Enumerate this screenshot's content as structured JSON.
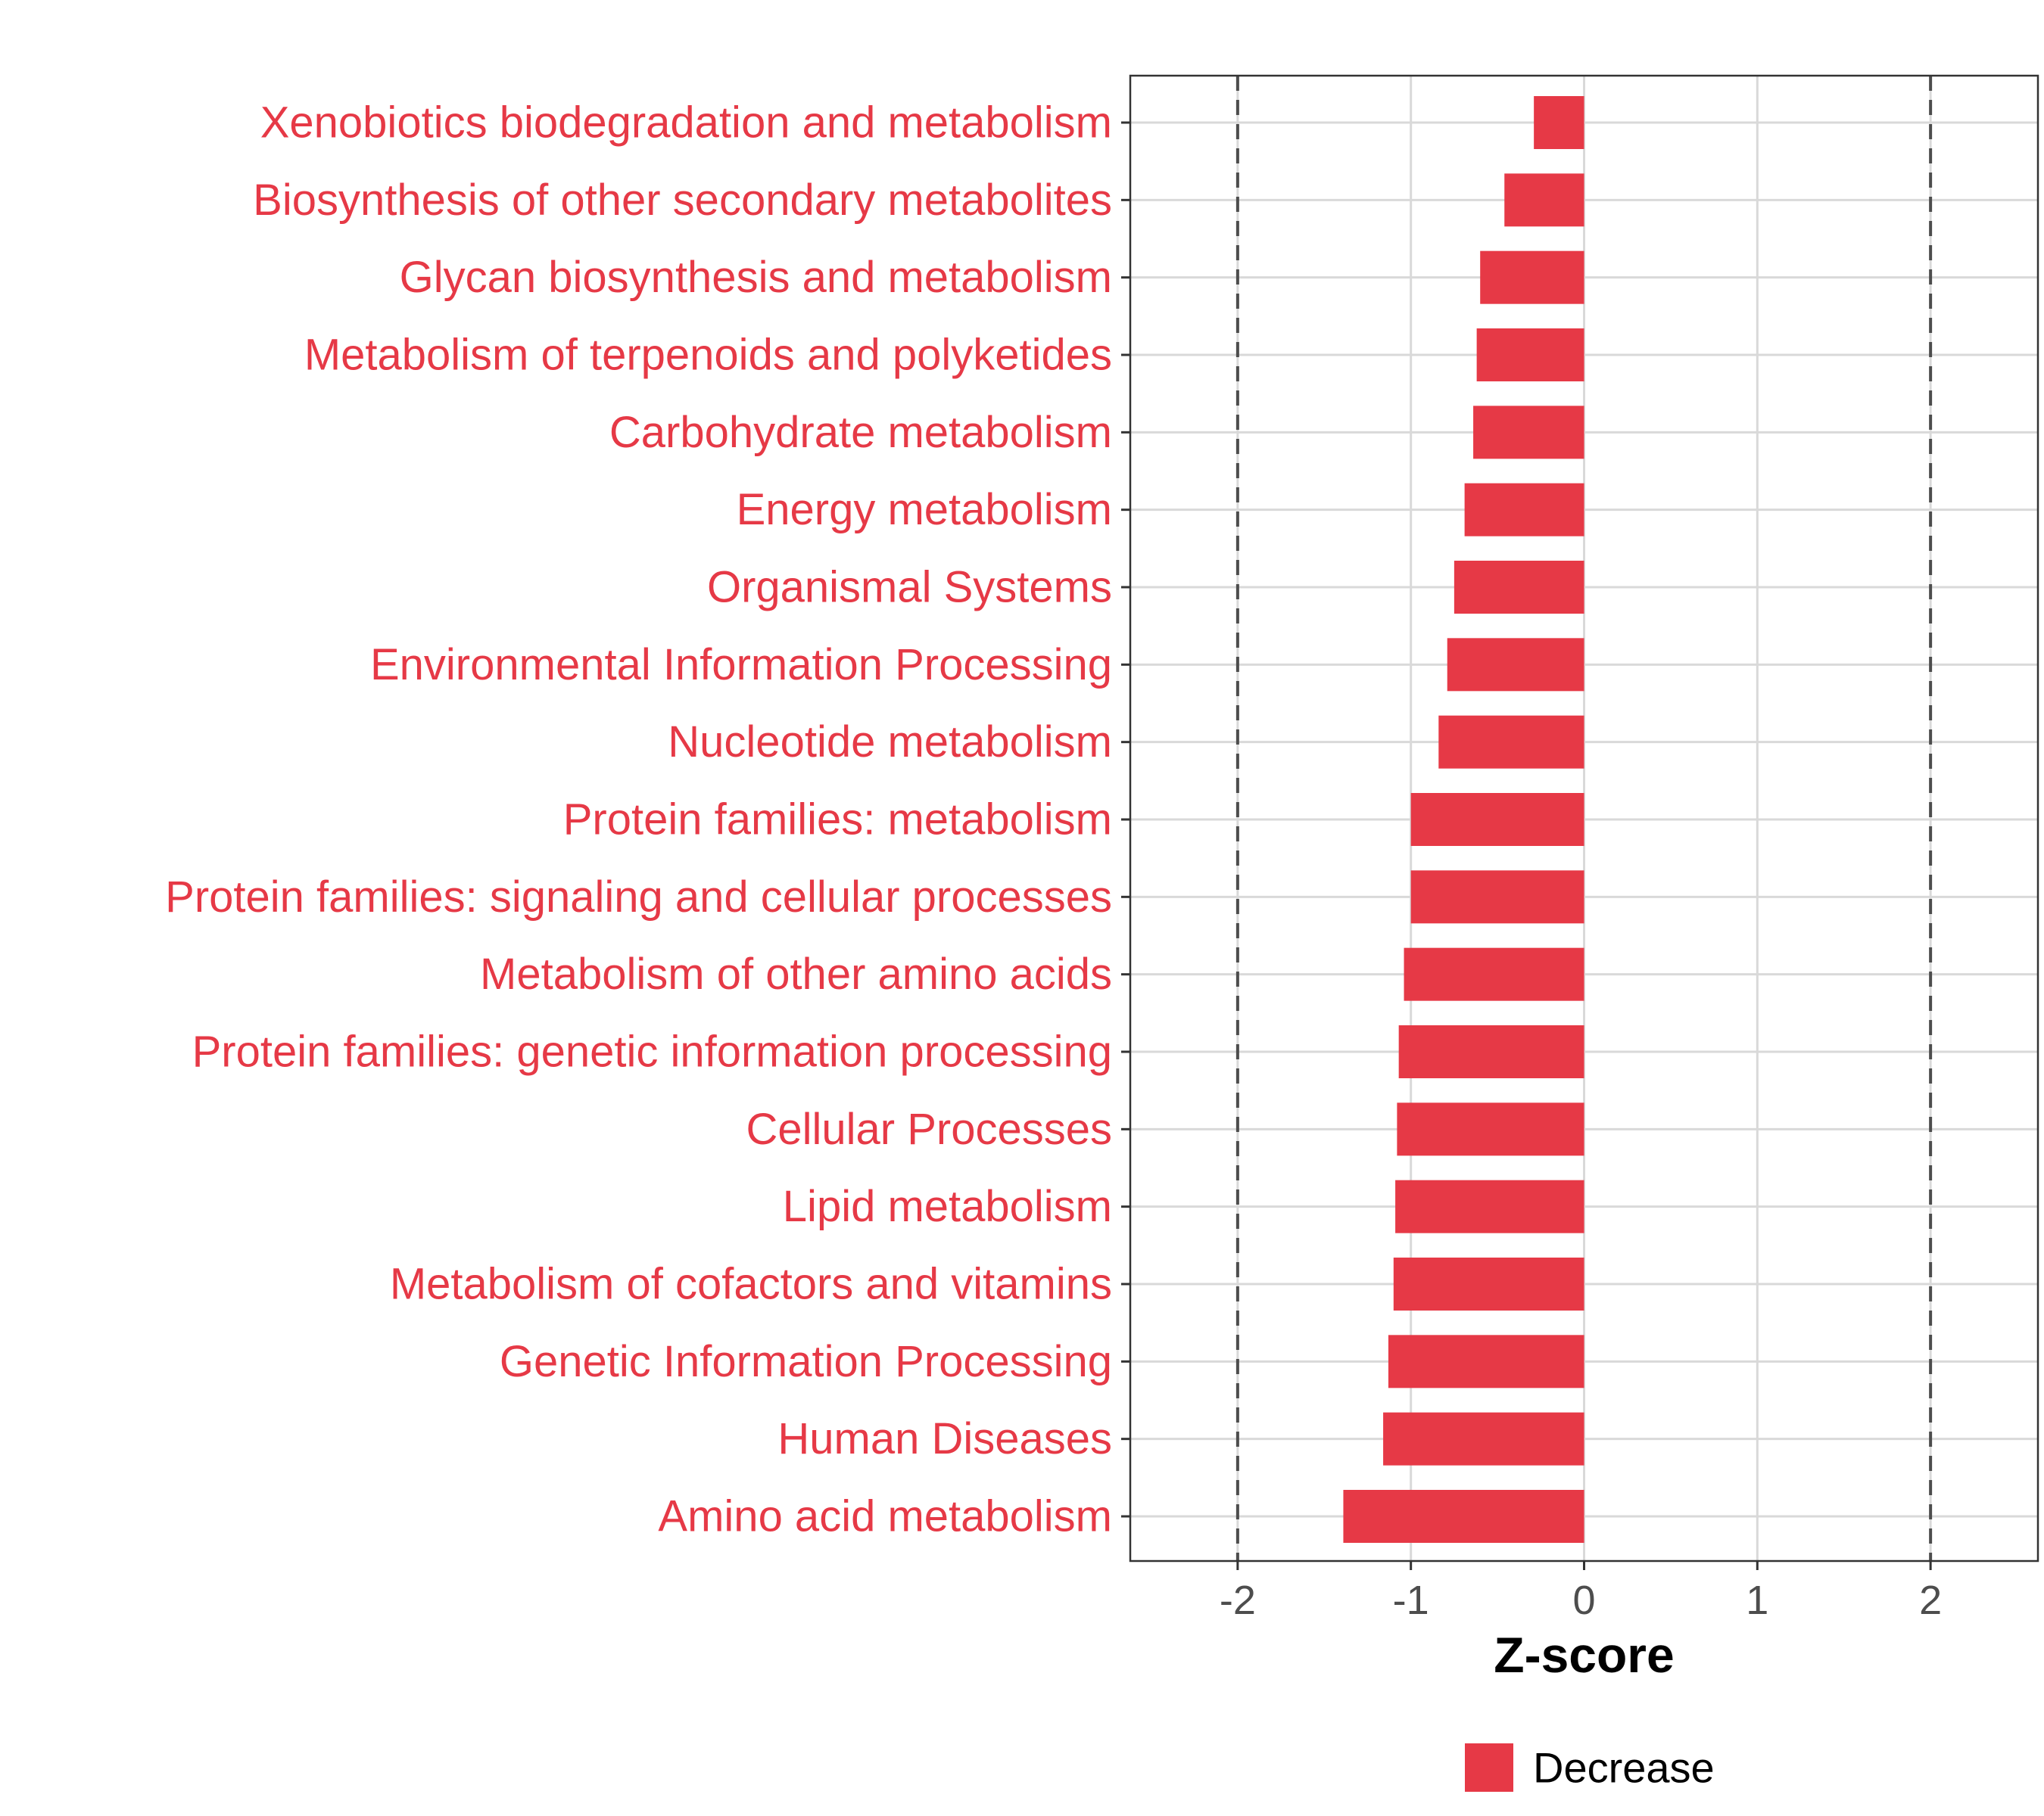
{
  "chart_data": {
    "type": "bar",
    "orientation": "horizontal",
    "categories": [
      "Xenobiotics biodegradation and metabolism",
      "Biosynthesis of other secondary metabolites",
      "Glycan biosynthesis and metabolism",
      "Metabolism of terpenoids and polyketides",
      "Carbohydrate metabolism",
      "Energy metabolism",
      "Organismal Systems",
      "Environmental Information Processing",
      "Nucleotide metabolism",
      "Protein families: metabolism",
      "Protein families: signaling and cellular processes",
      "Metabolism of other amino acids",
      "Protein families: genetic information processing",
      "Cellular Processes",
      "Lipid metabolism",
      "Metabolism of cofactors and vitamins",
      "Genetic Information Processing",
      "Human Diseases",
      "Amino acid metabolism"
    ],
    "values": [
      -0.29,
      -0.46,
      -0.6,
      -0.62,
      -0.64,
      -0.69,
      -0.75,
      -0.79,
      -0.84,
      -1.0,
      -1.0,
      -1.04,
      -1.07,
      -1.08,
      -1.09,
      -1.1,
      -1.13,
      -1.16,
      -1.39
    ],
    "xlabel": "Z-score",
    "ylabel": "",
    "xlim": [
      -2.62,
      2.62
    ],
    "xticks": [
      "-2",
      "-1",
      "0",
      "1",
      "2"
    ],
    "xtick_values": [
      -2,
      -1,
      0,
      1,
      2
    ],
    "reference_lines": [
      -2,
      2
    ],
    "grid": true,
    "legend": {
      "placement": "bottom",
      "entries": [
        "Decrease"
      ]
    },
    "colors": {
      "bar": "#E63946",
      "category_label": "#E63946",
      "reference_line": "#4d4d4d",
      "grid": "#d9d9d9",
      "panel_border": "#333333"
    }
  }
}
